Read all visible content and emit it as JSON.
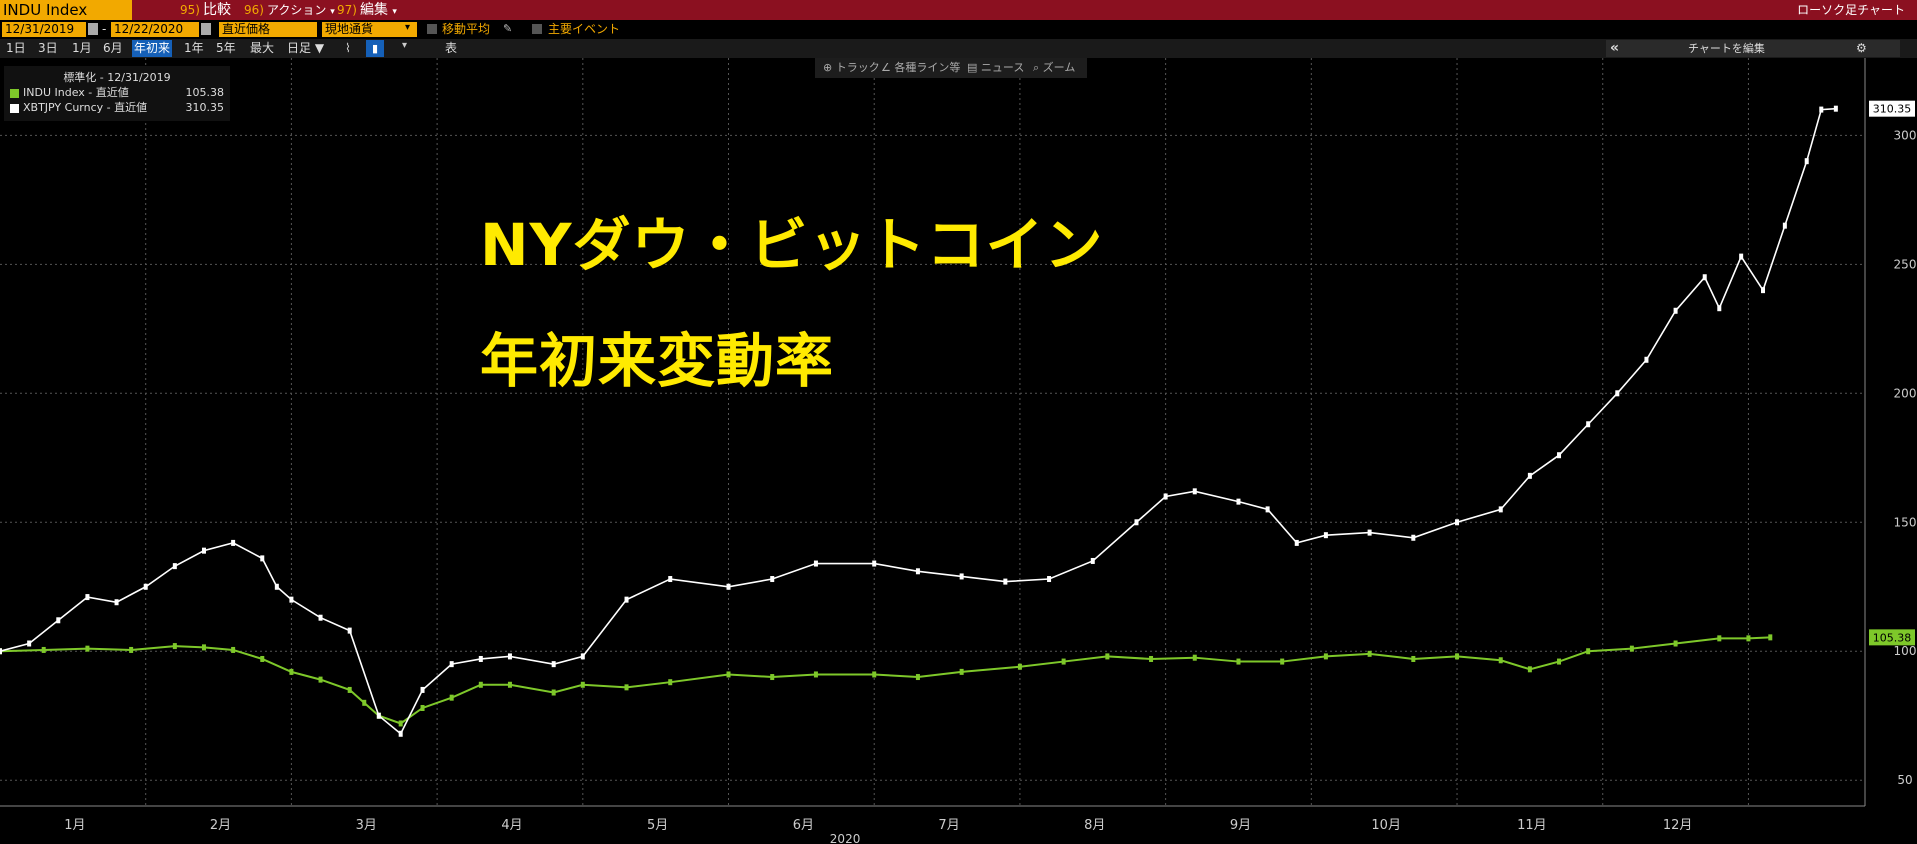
{
  "toolbar": {
    "ticker": "INDU Index",
    "compare_num": "95)",
    "compare_label": "比較",
    "action_num": "96)",
    "action_label": "アクション",
    "edit_num": "97)",
    "edit_label": "編集",
    "chart_type": "ローソク足チャート"
  },
  "controls": {
    "start_date": "12/31/2019",
    "end_date": "12/22/2020",
    "price_field": "直近価格",
    "currency": "現地通貨",
    "moving_average": "移動平均",
    "main_events": "主要イベント",
    "table_label": "表",
    "edit_chart": "チャートを編集"
  },
  "periods": [
    "1日",
    "3日",
    "1月",
    "6月",
    "年初来",
    "1年",
    "5年",
    "最大",
    "日足"
  ],
  "selected_period": "年初来",
  "chart_tools": [
    "トラック",
    "各種ライン等",
    "ニュース",
    "ズーム"
  ],
  "legend": {
    "header": "標準化 - 12/31/2019",
    "items": [
      {
        "name": "INDU Index - 直近値",
        "value": "105.38",
        "color": "#7ec82a"
      },
      {
        "name": "XBTJPY Curncy - 直近値",
        "value": "310.35",
        "color": "#ffffff"
      }
    ]
  },
  "overlay": {
    "line1": "NYダウ・ビットコイン",
    "line2": "年初来変動率"
  },
  "chart_data": {
    "type": "line",
    "x_labels": [
      "1月",
      "2月",
      "3月",
      "4月",
      "5月",
      "6月",
      "7月",
      "8月",
      "9月",
      "10月",
      "11月",
      "12月"
    ],
    "x_year": "2020",
    "y_ticks": [
      50,
      100,
      150,
      200,
      250,
      300
    ],
    "ylim": [
      45,
      290
    ],
    "series": [
      {
        "name": "INDU Index",
        "color": "#7ec82a",
        "last": "105.38",
        "values": [
          [
            0,
            100
          ],
          [
            0.3,
            100.5
          ],
          [
            0.6,
            101
          ],
          [
            0.9,
            100.5
          ],
          [
            1.2,
            102
          ],
          [
            1.4,
            101.5
          ],
          [
            1.6,
            100.5
          ],
          [
            1.8,
            97
          ],
          [
            2.0,
            92
          ],
          [
            2.2,
            89
          ],
          [
            2.4,
            85
          ],
          [
            2.5,
            80
          ],
          [
            2.6,
            75
          ],
          [
            2.75,
            72
          ],
          [
            2.9,
            78
          ],
          [
            3.1,
            82
          ],
          [
            3.3,
            87
          ],
          [
            3.5,
            87
          ],
          [
            3.8,
            84
          ],
          [
            4.0,
            87
          ],
          [
            4.3,
            86
          ],
          [
            4.6,
            88
          ],
          [
            5.0,
            91
          ],
          [
            5.3,
            90
          ],
          [
            5.6,
            91
          ],
          [
            6.0,
            91
          ],
          [
            6.3,
            90
          ],
          [
            6.6,
            92
          ],
          [
            7.0,
            94
          ],
          [
            7.3,
            96
          ],
          [
            7.6,
            98
          ],
          [
            7.9,
            97
          ],
          [
            8.2,
            97.5
          ],
          [
            8.5,
            96
          ],
          [
            8.8,
            96
          ],
          [
            9.1,
            98
          ],
          [
            9.4,
            99
          ],
          [
            9.7,
            97
          ],
          [
            10.0,
            98
          ],
          [
            10.3,
            96.5
          ],
          [
            10.5,
            93
          ],
          [
            10.7,
            96
          ],
          [
            10.9,
            100
          ],
          [
            11.2,
            101
          ],
          [
            11.5,
            103
          ],
          [
            11.8,
            105
          ],
          [
            12.0,
            105
          ],
          [
            12.15,
            105.38
          ]
        ]
      },
      {
        "name": "XBTJPY Curncy",
        "color": "#ffffff",
        "last": "310.35",
        "values": [
          [
            0,
            100
          ],
          [
            0.2,
            103
          ],
          [
            0.4,
            112
          ],
          [
            0.6,
            121
          ],
          [
            0.8,
            119
          ],
          [
            1.0,
            125
          ],
          [
            1.2,
            133
          ],
          [
            1.4,
            139
          ],
          [
            1.6,
            142
          ],
          [
            1.8,
            136
          ],
          [
            1.9,
            125
          ],
          [
            2.0,
            120
          ],
          [
            2.2,
            113
          ],
          [
            2.4,
            108
          ],
          [
            2.6,
            75
          ],
          [
            2.75,
            68
          ],
          [
            2.9,
            85
          ],
          [
            3.1,
            95
          ],
          [
            3.3,
            97
          ],
          [
            3.5,
            98
          ],
          [
            3.8,
            95
          ],
          [
            4.0,
            98
          ],
          [
            4.3,
            120
          ],
          [
            4.6,
            128
          ],
          [
            5.0,
            125
          ],
          [
            5.3,
            128
          ],
          [
            5.6,
            134
          ],
          [
            6.0,
            134
          ],
          [
            6.3,
            131
          ],
          [
            6.6,
            129
          ],
          [
            6.9,
            127
          ],
          [
            7.2,
            128
          ],
          [
            7.5,
            135
          ],
          [
            7.8,
            150
          ],
          [
            8.0,
            160
          ],
          [
            8.2,
            162
          ],
          [
            8.5,
            158
          ],
          [
            8.7,
            155
          ],
          [
            8.9,
            142
          ],
          [
            9.1,
            145
          ],
          [
            9.4,
            146
          ],
          [
            9.7,
            144
          ],
          [
            10.0,
            150
          ],
          [
            10.3,
            155
          ],
          [
            10.5,
            168
          ],
          [
            10.7,
            176
          ],
          [
            10.9,
            188
          ],
          [
            11.1,
            200
          ],
          [
            11.3,
            213
          ],
          [
            11.5,
            232
          ],
          [
            11.7,
            245
          ],
          [
            11.8,
            233
          ],
          [
            11.95,
            253
          ],
          [
            12.1,
            240
          ],
          [
            12.25,
            265
          ],
          [
            12.4,
            290
          ],
          [
            12.5,
            310
          ],
          [
            12.6,
            310.35
          ]
        ]
      }
    ],
    "grid": true,
    "legend_position": "top-left"
  }
}
